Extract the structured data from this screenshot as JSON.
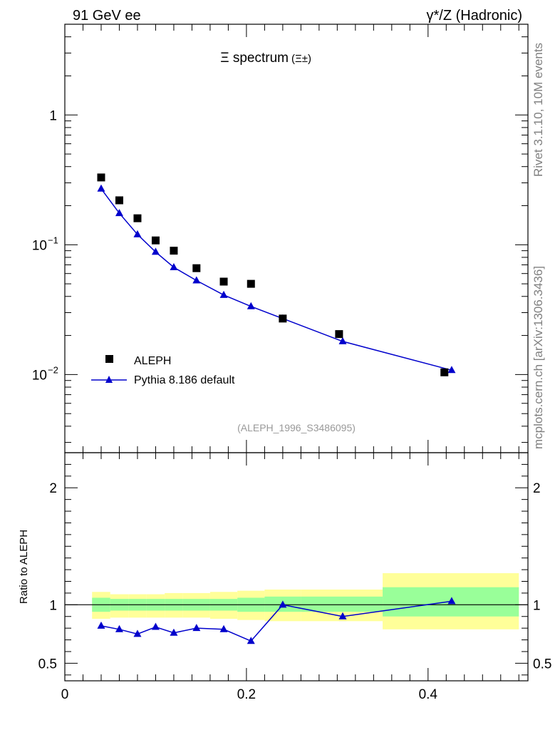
{
  "header": {
    "left": "91 GeV ee",
    "right": "γ*/Z (Hadronic)"
  },
  "side_text": {
    "rivet": "Rivet 3.1.10,  10M events",
    "mcplots": "mcplots.cern.ch [arXiv:1306.3436]"
  },
  "chart_data": [
    {
      "type": "scatter",
      "title": "Ξ spectrum (Ξ±)",
      "title_main": "Ξ spectrum",
      "title_sub": "(Ξ±)",
      "analysis_ref": "(ALEPH_1996_S3486095)",
      "xlim": [
        0,
        0.51
      ],
      "ylim": [
        0.0025,
        5
      ],
      "yscale": "log",
      "yticks": [
        {
          "value": 1,
          "label": "1"
        },
        {
          "value": 0.1,
          "label": "10",
          "exp": "−1"
        },
        {
          "value": 0.01,
          "label": "10",
          "exp": "−2"
        }
      ],
      "legend_position": "bottom-left",
      "series": [
        {
          "name": "ALEPH",
          "marker": "square",
          "color": "#000000",
          "x": [
            0.04,
            0.06,
            0.08,
            0.1,
            0.12,
            0.145,
            0.175,
            0.205,
            0.24,
            0.302,
            0.418
          ],
          "y": [
            0.33,
            0.22,
            0.16,
            0.108,
            0.09,
            0.066,
            0.052,
            0.05,
            0.027,
            0.0205,
            0.0104
          ]
        },
        {
          "name": "Pythia 8.186 default",
          "marker": "triangle",
          "color": "#0000cc",
          "x": [
            0.04,
            0.06,
            0.08,
            0.1,
            0.12,
            0.145,
            0.175,
            0.205,
            0.24,
            0.306,
            0.426
          ],
          "y": [
            0.27,
            0.175,
            0.12,
            0.088,
            0.067,
            0.053,
            0.041,
            0.0335,
            0.027,
            0.018,
            0.0108
          ]
        }
      ]
    },
    {
      "type": "line",
      "ylabel": "Ratio to ALEPH",
      "xlim": [
        0,
        0.51
      ],
      "ylim": [
        0.35,
        2.3
      ],
      "xticks": [
        {
          "value": 0,
          "label": "0"
        },
        {
          "value": 0.2,
          "label": "0.2"
        },
        {
          "value": 0.4,
          "label": "0.4"
        }
      ],
      "yticks": [
        {
          "value": 0.5,
          "label": "0.5"
        },
        {
          "value": 1,
          "label": "1"
        },
        {
          "value": 2,
          "label": "2"
        }
      ],
      "reference_line": 1,
      "bands": [
        {
          "x0": 0.03,
          "x1": 0.05,
          "inner": [
            0.94,
            1.06
          ],
          "outer": [
            0.88,
            1.11
          ]
        },
        {
          "x0": 0.05,
          "x1": 0.07,
          "inner": [
            0.95,
            1.05
          ],
          "outer": [
            0.89,
            1.09
          ]
        },
        {
          "x0": 0.07,
          "x1": 0.09,
          "inner": [
            0.95,
            1.05
          ],
          "outer": [
            0.89,
            1.09
          ]
        },
        {
          "x0": 0.09,
          "x1": 0.11,
          "inner": [
            0.95,
            1.05
          ],
          "outer": [
            0.89,
            1.09
          ]
        },
        {
          "x0": 0.11,
          "x1": 0.13,
          "inner": [
            0.95,
            1.05
          ],
          "outer": [
            0.89,
            1.1
          ]
        },
        {
          "x0": 0.13,
          "x1": 0.16,
          "inner": [
            0.95,
            1.05
          ],
          "outer": [
            0.89,
            1.1
          ]
        },
        {
          "x0": 0.16,
          "x1": 0.19,
          "inner": [
            0.95,
            1.05
          ],
          "outer": [
            0.88,
            1.11
          ]
        },
        {
          "x0": 0.19,
          "x1": 0.22,
          "inner": [
            0.94,
            1.06
          ],
          "outer": [
            0.87,
            1.12
          ]
        },
        {
          "x0": 0.22,
          "x1": 0.26,
          "inner": [
            0.94,
            1.07
          ],
          "outer": [
            0.86,
            1.13
          ]
        },
        {
          "x0": 0.26,
          "x1": 0.35,
          "inner": [
            0.94,
            1.07
          ],
          "outer": [
            0.86,
            1.13
          ]
        },
        {
          "x0": 0.35,
          "x1": 0.5,
          "inner": [
            0.9,
            1.15
          ],
          "outer": [
            0.79,
            1.27
          ]
        }
      ],
      "series": [
        {
          "name": "Pythia 8.186 default",
          "marker": "triangle",
          "color": "#0000cc",
          "x": [
            0.04,
            0.06,
            0.08,
            0.1,
            0.12,
            0.145,
            0.175,
            0.205,
            0.24,
            0.306,
            0.426
          ],
          "y": [
            0.82,
            0.79,
            0.75,
            0.81,
            0.76,
            0.8,
            0.79,
            0.69,
            1.0,
            0.9,
            1.03
          ]
        }
      ]
    }
  ],
  "colors": {
    "band_inner": "#99ff99",
    "band_outer": "#ffff99",
    "mc": "#0000cc",
    "data": "#000000"
  }
}
